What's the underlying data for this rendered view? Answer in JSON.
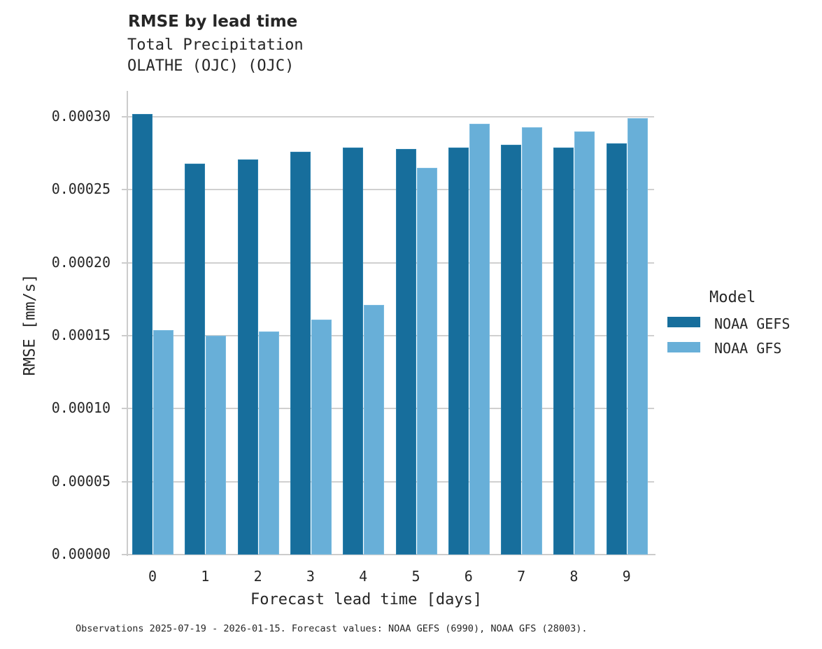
{
  "header": {
    "title": "RMSE by lead time",
    "subtitle_line1": "Total Precipitation",
    "subtitle_line2": "OLATHE (OJC) (OJC)"
  },
  "axes": {
    "xlabel": "Forecast lead time [days]",
    "ylabel": "RMSE [mm/s]",
    "yticks": [
      "0.00000",
      "0.00005",
      "0.00010",
      "0.00015",
      "0.00020",
      "0.00025",
      "0.00030"
    ],
    "xticks": [
      "0",
      "1",
      "2",
      "3",
      "4",
      "5",
      "6",
      "7",
      "8",
      "9"
    ]
  },
  "legend": {
    "title": "Model",
    "items": [
      {
        "label": "NOAA GEFS",
        "color": "#176e9c"
      },
      {
        "label": "NOAA GFS",
        "color": "#68afd8"
      }
    ]
  },
  "footer": "Observations 2025-07-19 - 2026-01-15. Forecast values: NOAA GEFS (6990), NOAA GFS (28003).",
  "chart_data": {
    "type": "bar",
    "title": "RMSE by lead time",
    "subtitle": "Total Precipitation / OLATHE (OJC) (OJC)",
    "xlabel": "Forecast lead time [days]",
    "ylabel": "RMSE [mm/s]",
    "categories": [
      "0",
      "1",
      "2",
      "3",
      "4",
      "5",
      "6",
      "7",
      "8",
      "9"
    ],
    "series": [
      {
        "name": "NOAA GEFS",
        "color": "#176e9c",
        "values": [
          0.000302,
          0.000268,
          0.000271,
          0.000276,
          0.000279,
          0.000278,
          0.000279,
          0.000281,
          0.000279,
          0.000282
        ]
      },
      {
        "name": "NOAA GFS",
        "color": "#68afd8",
        "values": [
          0.000154,
          0.00015,
          0.000153,
          0.000161,
          0.000171,
          0.000265,
          0.000295,
          0.000293,
          0.00029,
          0.000299
        ]
      }
    ],
    "ylim": [
      0,
      0.000318
    ],
    "grid": "horizontal",
    "legend_position": "right",
    "legend_title": "Model"
  }
}
